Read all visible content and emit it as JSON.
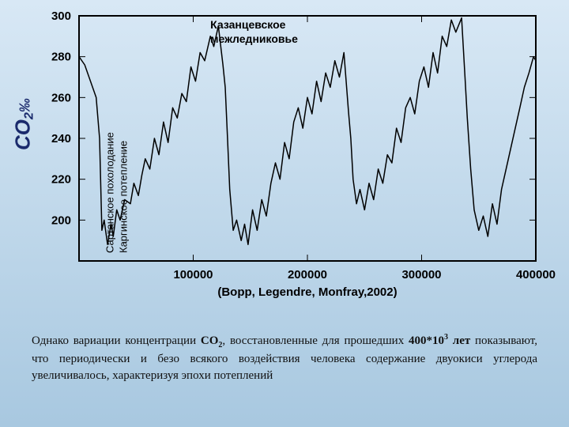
{
  "chart": {
    "type": "line",
    "background_color": "#dce9f5",
    "plot_border_color": "#000000",
    "plot_border_width": 2,
    "grid_color": "#000000",
    "grid_width": 1,
    "line_color": "#000000",
    "line_width": 1.5,
    "xlim": [
      0,
      400000
    ],
    "ylim": [
      180,
      300
    ],
    "xtick_step": 100000,
    "ytick_step": 20,
    "xticks": [
      100000,
      200000,
      300000,
      400000
    ],
    "yticks": [
      200,
      220,
      240,
      260,
      280,
      300
    ],
    "inner_xticks": [
      0,
      100000,
      200000,
      300000,
      400000
    ],
    "inner_yticks": [
      180,
      200,
      220,
      240,
      260,
      280,
      300
    ],
    "ylabel_main": "CO",
    "ylabel_sub": "2",
    "ylabel_unit": "‰",
    "xaxis_caption": "(Bopp, Legendre, Monfray,2002)",
    "annotation_top": "Казанцевское межледниковье",
    "annotation_vert1": "Сартанское похолодание",
    "annotation_vert2": "Каргинское потепление",
    "label_fontsize": 15,
    "label_fontweight": "bold",
    "series": [
      [
        0,
        280
      ],
      [
        5000,
        276
      ],
      [
        10000,
        268
      ],
      [
        15000,
        260
      ],
      [
        18000,
        240
      ],
      [
        20000,
        195
      ],
      [
        22000,
        200
      ],
      [
        25000,
        188
      ],
      [
        28000,
        198
      ],
      [
        30000,
        192
      ],
      [
        33000,
        205
      ],
      [
        36000,
        200
      ],
      [
        40000,
        210
      ],
      [
        45000,
        208
      ],
      [
        48000,
        218
      ],
      [
        52000,
        212
      ],
      [
        55000,
        222
      ],
      [
        58000,
        230
      ],
      [
        62000,
        225
      ],
      [
        66000,
        240
      ],
      [
        70000,
        232
      ],
      [
        74000,
        248
      ],
      [
        78000,
        238
      ],
      [
        82000,
        255
      ],
      [
        86000,
        250
      ],
      [
        90000,
        262
      ],
      [
        94000,
        258
      ],
      [
        98000,
        275
      ],
      [
        102000,
        268
      ],
      [
        106000,
        282
      ],
      [
        110000,
        278
      ],
      [
        115000,
        290
      ],
      [
        118000,
        285
      ],
      [
        122000,
        295
      ],
      [
        126000,
        276
      ],
      [
        128000,
        265
      ],
      [
        130000,
        240
      ],
      [
        132000,
        215
      ],
      [
        135000,
        195
      ],
      [
        138000,
        200
      ],
      [
        142000,
        190
      ],
      [
        145000,
        198
      ],
      [
        148000,
        188
      ],
      [
        152000,
        205
      ],
      [
        156000,
        195
      ],
      [
        160000,
        210
      ],
      [
        164000,
        202
      ],
      [
        168000,
        218
      ],
      [
        172000,
        228
      ],
      [
        176000,
        220
      ],
      [
        180000,
        238
      ],
      [
        184000,
        230
      ],
      [
        188000,
        248
      ],
      [
        192000,
        255
      ],
      [
        196000,
        245
      ],
      [
        200000,
        260
      ],
      [
        204000,
        252
      ],
      [
        208000,
        268
      ],
      [
        212000,
        258
      ],
      [
        216000,
        272
      ],
      [
        220000,
        265
      ],
      [
        224000,
        278
      ],
      [
        228000,
        270
      ],
      [
        232000,
        282
      ],
      [
        236000,
        253
      ],
      [
        238000,
        240
      ],
      [
        240000,
        220
      ],
      [
        243000,
        208
      ],
      [
        246000,
        215
      ],
      [
        250000,
        205
      ],
      [
        254000,
        218
      ],
      [
        258000,
        210
      ],
      [
        262000,
        225
      ],
      [
        266000,
        218
      ],
      [
        270000,
        232
      ],
      [
        274000,
        228
      ],
      [
        278000,
        245
      ],
      [
        282000,
        238
      ],
      [
        286000,
        255
      ],
      [
        290000,
        260
      ],
      [
        294000,
        252
      ],
      [
        298000,
        268
      ],
      [
        302000,
        275
      ],
      [
        306000,
        265
      ],
      [
        310000,
        282
      ],
      [
        314000,
        272
      ],
      [
        318000,
        290
      ],
      [
        322000,
        285
      ],
      [
        326000,
        298
      ],
      [
        330000,
        292
      ],
      [
        335000,
        299
      ],
      [
        338000,
        270
      ],
      [
        340000,
        250
      ],
      [
        343000,
        225
      ],
      [
        346000,
        205
      ],
      [
        350000,
        195
      ],
      [
        354000,
        202
      ],
      [
        358000,
        192
      ],
      [
        362000,
        208
      ],
      [
        366000,
        198
      ],
      [
        370000,
        215
      ],
      [
        374000,
        225
      ],
      [
        378000,
        235
      ],
      [
        382000,
        245
      ],
      [
        386000,
        255
      ],
      [
        390000,
        265
      ],
      [
        394000,
        272
      ],
      [
        398000,
        280
      ],
      [
        400000,
        278
      ]
    ]
  },
  "caption": {
    "prefix": "Однако вариации концентрации ",
    "co2": "СО",
    "co2_sub": "2",
    "mid": ", восстановленные для прошедших ",
    "years_num": "400*10",
    "years_sup": "3",
    "years_unit": " лет",
    "suffix": " показывают, что периодически и безо всякого воздействия человека содержание двуокиси углерода увеличивалось, характеризуя эпохи потеплений"
  }
}
